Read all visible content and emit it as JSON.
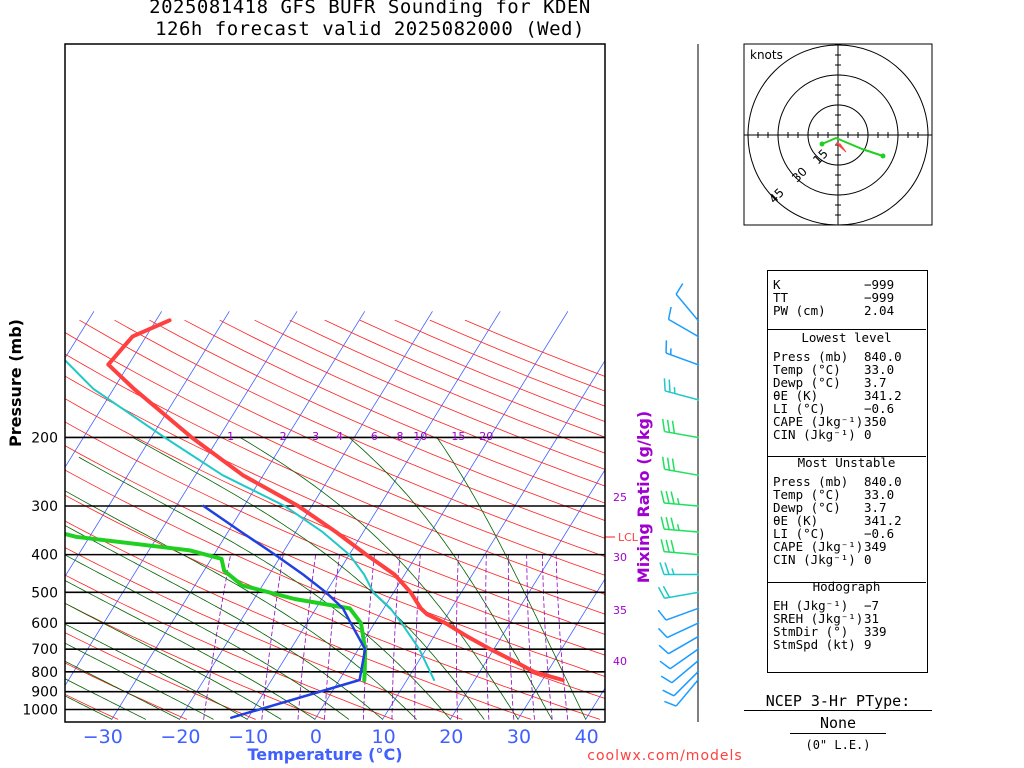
{
  "header": {
    "line1": "2025081418 GFS BUFR Sounding for KDEN",
    "line2": "126h forecast valid 2025082000 (Wed)"
  },
  "axes": {
    "ylabel": "Pressure (mb)",
    "xlabel": "Temperature (°C)",
    "mixlabel": "Mixing Ratio (g/kg)",
    "pressure_ticks": [
      "200",
      "300",
      "400",
      "500",
      "600",
      "700",
      "800",
      "900",
      "1000"
    ],
    "temp_ticks": [
      "−30",
      "−20",
      "−10",
      "0",
      "10",
      "20",
      "30",
      "40"
    ],
    "mix_labels": [
      "1",
      "2",
      "3",
      "4",
      "6",
      "8",
      "10",
      "15",
      "20"
    ],
    "mix_side": [
      "25",
      "30",
      "35",
      "40"
    ],
    "lcl": "LCL"
  },
  "hodo": {
    "title": "knots",
    "rings": [
      "15",
      "30",
      "45"
    ]
  },
  "indices": {
    "k": {
      "label": "K",
      "value": "−999"
    },
    "tt": {
      "label": "TT",
      "value": "−999"
    },
    "pw": {
      "label": "PW (cm)",
      "value": "2.04"
    },
    "lowest_title": "Lowest level",
    "lowest": [
      {
        "label": "Press (mb)",
        "value": "840.0"
      },
      {
        "label": "Temp (°C)",
        "value": "33.0"
      },
      {
        "label": "Dewp (°C)",
        "value": "3.7"
      },
      {
        "label": "θE (K)",
        "value": "341.2"
      },
      {
        "label": "LI (°C)",
        "value": "−0.6"
      },
      {
        "label": "CAPE (Jkg⁻¹)",
        "value": "350"
      },
      {
        "label": "CIN (Jkg⁻¹)",
        "value": "0"
      }
    ],
    "mu_title": "Most Unstable",
    "mu": [
      {
        "label": "Press (mb)",
        "value": "840.0"
      },
      {
        "label": "Temp (°C)",
        "value": "33.0"
      },
      {
        "label": "Dewp (°C)",
        "value": "3.7"
      },
      {
        "label": "θE (K)",
        "value": "341.2"
      },
      {
        "label": "LI (°C)",
        "value": "−0.6"
      },
      {
        "label": "CAPE (Jkg⁻¹)",
        "value": "349"
      },
      {
        "label": "CIN (Jkg⁻¹)",
        "value": "0"
      }
    ],
    "hodo_title": "Hodograph",
    "hodograph": [
      {
        "label": "EH (Jkg⁻¹)",
        "value": "−7"
      },
      {
        "label": "SREH (Jkg⁻¹)",
        "value": "31"
      },
      {
        "label": "StmDir (°)",
        "value": "339"
      },
      {
        "label": "StmSpd (kt)",
        "value": "9"
      }
    ]
  },
  "ptype": {
    "title": "NCEP 3-Hr PType:",
    "value": "None",
    "note": "(0\" L.E.)"
  },
  "credit": "coolwx.com/models",
  "colors": {
    "temp": "#ff4040",
    "dewp": "#20d020",
    "wetbulb": "#20c8c8",
    "parcel": "#2040e0",
    "isotherm": "#4060ff",
    "dryadiabat": "#ff2020",
    "moistadiabat": "#006000",
    "mixing": "#9000c0"
  },
  "chart_data": {
    "type": "line",
    "title": "2025081418 GFS BUFR Sounding for KDEN",
    "xlabel": "Temperature (°C)",
    "ylabel": "Pressure (mb)",
    "xlim": [
      -38,
      42
    ],
    "ylim": [
      1050,
      100
    ],
    "series": [
      {
        "name": "Temperature",
        "points": [
          [
            840,
            33
          ],
          [
            800,
            28
          ],
          [
            750,
            24
          ],
          [
            700,
            19.5
          ],
          [
            650,
            15
          ],
          [
            600,
            10.5
          ],
          [
            570,
            7
          ],
          [
            550,
            5.5
          ],
          [
            500,
            2.5
          ],
          [
            450,
            -1.5
          ],
          [
            400,
            -7.5
          ],
          [
            350,
            -14
          ],
          [
            300,
            -22
          ],
          [
            250,
            -33
          ],
          [
            200,
            -44
          ],
          [
            150,
            -57
          ],
          [
            130,
            -63
          ],
          [
            110,
            -62
          ],
          [
            100,
            -58
          ]
        ]
      },
      {
        "name": "Dewpoint",
        "points": [
          [
            840,
            3.7
          ],
          [
            800,
            3
          ],
          [
            700,
            1
          ],
          [
            600,
            -2
          ],
          [
            550,
            -5
          ],
          [
            520,
            -14
          ],
          [
            480,
            -23
          ],
          [
            440,
            -27
          ],
          [
            410,
            -28.5
          ],
          [
            390,
            -34
          ],
          [
            360,
            -52
          ],
          [
            300,
            -72
          ],
          [
            250,
            -75
          ],
          [
            210,
            -85
          ],
          [
            200,
            -90
          ],
          [
            165,
            -95
          ]
        ]
      },
      {
        "name": "Wet-bulb",
        "points": [
          [
            840,
            14
          ],
          [
            700,
            9
          ],
          [
            600,
            4
          ],
          [
            550,
            1
          ],
          [
            500,
            -3
          ],
          [
            450,
            -6
          ],
          [
            400,
            -10
          ],
          [
            350,
            -16
          ],
          [
            300,
            -24
          ],
          [
            250,
            -36
          ],
          [
            200,
            -48
          ],
          [
            150,
            -63
          ],
          [
            120,
            -72
          ]
        ]
      },
      {
        "name": "Parcel",
        "points": [
          [
            1050,
            -12.5
          ],
          [
            840,
            3
          ],
          [
            700,
            1
          ],
          [
            600,
            -3.5
          ],
          [
            550,
            -6
          ],
          [
            500,
            -10
          ],
          [
            450,
            -15
          ],
          [
            400,
            -21
          ],
          [
            350,
            -28
          ],
          [
            300,
            -36
          ]
        ]
      }
    ],
    "winds_kt": [
      {
        "p": 840,
        "dir": 220,
        "spd": 10
      },
      {
        "p": 800,
        "dir": 225,
        "spd": 10
      },
      {
        "p": 750,
        "dir": 230,
        "spd": 10
      },
      {
        "p": 700,
        "dir": 235,
        "spd": 10
      },
      {
        "p": 650,
        "dir": 240,
        "spd": 10
      },
      {
        "p": 600,
        "dir": 245,
        "spd": 10
      },
      {
        "p": 550,
        "dir": 250,
        "spd": 10
      },
      {
        "p": 500,
        "dir": 260,
        "spd": 20
      },
      {
        "p": 450,
        "dir": 270,
        "spd": 25
      },
      {
        "p": 400,
        "dir": 275,
        "spd": 30
      },
      {
        "p": 350,
        "dir": 275,
        "spd": 35
      },
      {
        "p": 300,
        "dir": 275,
        "spd": 35
      },
      {
        "p": 250,
        "dir": 280,
        "spd": 30
      },
      {
        "p": 200,
        "dir": 280,
        "spd": 30
      },
      {
        "p": 160,
        "dir": 285,
        "spd": 25
      },
      {
        "p": 130,
        "dir": 290,
        "spd": 15
      },
      {
        "p": 110,
        "dir": 300,
        "spd": 10
      },
      {
        "p": 100,
        "dir": 320,
        "spd": 10
      }
    ]
  }
}
